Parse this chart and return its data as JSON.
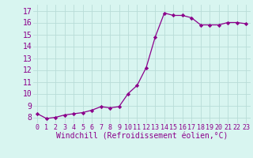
{
  "x": [
    0,
    1,
    2,
    3,
    4,
    5,
    6,
    7,
    8,
    9,
    10,
    11,
    12,
    13,
    14,
    15,
    16,
    17,
    18,
    19,
    20,
    21,
    22,
    23
  ],
  "y": [
    8.3,
    7.9,
    8.0,
    8.2,
    8.3,
    8.4,
    8.6,
    8.9,
    8.8,
    8.9,
    10.0,
    10.7,
    12.2,
    14.8,
    16.8,
    16.6,
    16.6,
    16.4,
    15.8,
    15.8,
    15.8,
    16.0,
    16.0,
    15.9
  ],
  "xlabel": "Windchill (Refroidissement éolien,°C)",
  "ylim": [
    7.5,
    17.5
  ],
  "xlim": [
    -0.5,
    23.5
  ],
  "yticks": [
    8,
    9,
    10,
    11,
    12,
    13,
    14,
    15,
    16,
    17
  ],
  "xticks": [
    0,
    1,
    2,
    3,
    4,
    5,
    6,
    7,
    8,
    9,
    10,
    11,
    12,
    13,
    14,
    15,
    16,
    17,
    18,
    19,
    20,
    21,
    22,
    23
  ],
  "line_color": "#8B008B",
  "marker": "D",
  "marker_size": 2.2,
  "bg_color": "#d8f5f0",
  "grid_color": "#b8dcd8",
  "label_color": "#8B008B",
  "xlabel_fontsize": 7,
  "ytick_fontsize": 7,
  "xtick_fontsize": 6
}
